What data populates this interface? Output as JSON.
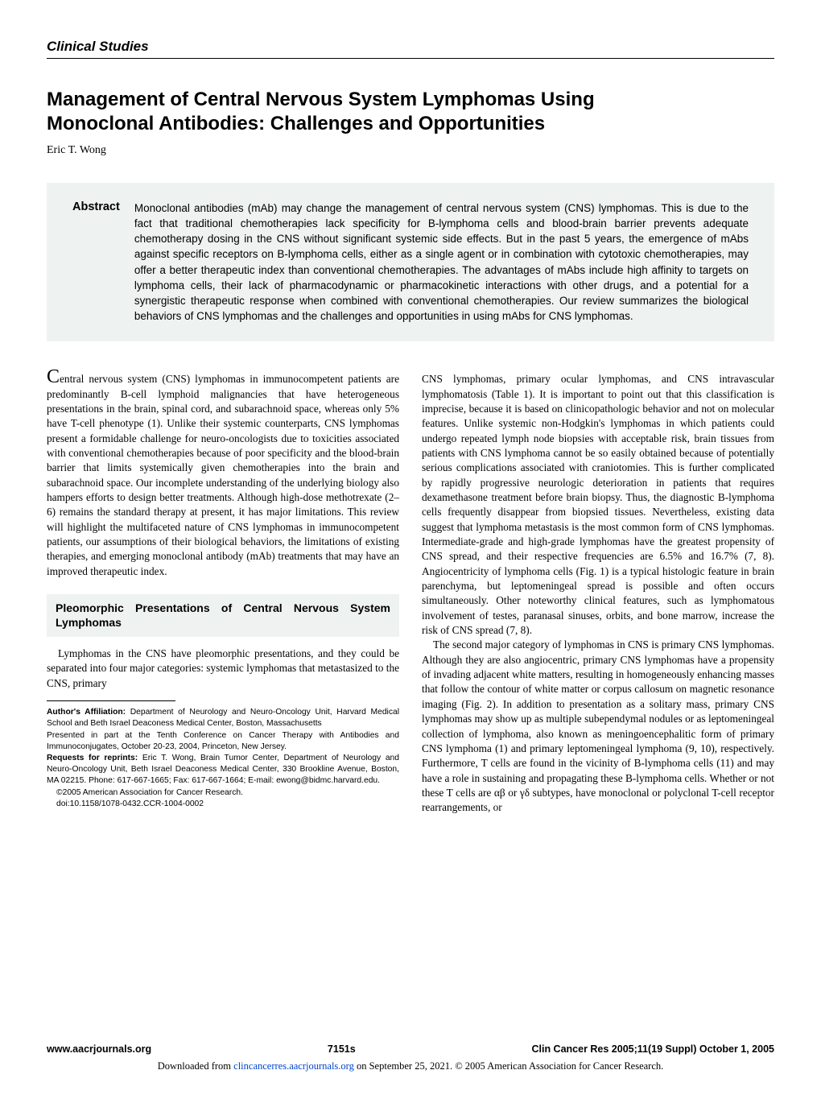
{
  "section_label": "Clinical Studies",
  "title_line1": "Management of Central Nervous System Lymphomas Using",
  "title_line2": "Monoclonal Antibodies: Challenges and Opportunities",
  "author": "Eric T. Wong",
  "abstract": {
    "label": "Abstract",
    "text": "Monoclonal antibodies (mAb) may change the management of central nervous system (CNS) lymphomas. This is due to the fact that traditional chemotherapies lack specificity for B-lymphoma cells and blood-brain barrier prevents adequate chemotherapy dosing in the CNS without significant systemic side effects. But in the past 5 years, the emergence of mAbs against specific receptors on B-lymphoma cells, either as a single agent or in combination with cytotoxic chemotherapies, may offer a better therapeutic index than conventional chemotherapies. The advantages of mAbs include high affinity to targets on lymphoma cells, their lack of pharmacodynamic or pharmacokinetic interactions with other drugs, and a potential for a synergistic therapeutic response when combined with conventional chemotherapies. Our review summarizes the biological behaviors of CNS lymphomas and the challenges and opportunities in using mAbs for CNS lymphomas."
  },
  "left_col": {
    "intro_first_letter": "C",
    "intro_rest": "entral nervous system (CNS) lymphomas in immunocompetent patients are predominantly B-cell lymphoid malignancies that have heterogeneous presentations in the brain, spinal cord, and subarachnoid space, whereas only 5% have T-cell phenotype (1). Unlike their systemic counterparts, CNS lymphomas present a formidable challenge for neuro-oncologists due to toxicities associated with conventional chemotherapies because of poor specificity and the blood-brain barrier that limits systemically given chemotherapies into the brain and subarachnoid space. Our incomplete understanding of the underlying biology also hampers efforts to design better treatments. Although high-dose methotrexate (2–6) remains the standard therapy at present, it has major limitations. This review will highlight the multifaceted nature of CNS lymphomas in immunocompetent patients, our assumptions of their biological behaviors, the limitations of existing therapies, and emerging monoclonal antibody (mAb) treatments that may have an improved therapeutic index.",
    "section_heading": "Pleomorphic Presentations of Central Nervous System Lymphomas",
    "section_para": "Lymphomas in the CNS have pleomorphic presentations, and they could be separated into four major categories: systemic lymphomas that metastasized to the CNS, primary",
    "affiliation_label": "Author's Affiliation:",
    "affiliation_text": " Department of Neurology and Neuro-Oncology Unit, Harvard Medical School and Beth Israel Deaconess Medical Center, Boston, Massachusetts",
    "presented": "Presented in part at the Tenth Conference on Cancer Therapy with Antibodies and Immunoconjugates, October 20-23, 2004, Princeton, New Jersey.",
    "reprints_label": "Requests for reprints:",
    "reprints_text": " Eric T. Wong, Brain Tumor Center, Department of Neurology and Neuro-Oncology Unit, Beth Israel Deaconess Medical Center, 330 Brookline Avenue, Boston, MA 02215. Phone: 617-667-1665; Fax: 617-667-1664; E-mail: ewong@bidmc.harvard.edu.",
    "copyright": "©2005 American Association for Cancer Research.",
    "doi": "doi:10.1158/1078-0432.CCR-1004-0002"
  },
  "right_col": {
    "para1": "CNS lymphomas, primary ocular lymphomas, and CNS intravascular lymphomatosis (Table 1). It is important to point out that this classification is imprecise, because it is based on clinicopathologic behavior and not on molecular features. Unlike systemic non-Hodgkin's lymphomas in which patients could undergo repeated lymph node biopsies with acceptable risk, brain tissues from patients with CNS lymphoma cannot be so easily obtained because of potentially serious complications associated with craniotomies. This is further complicated by rapidly progressive neurologic deterioration in patients that requires dexamethasone treatment before brain biopsy. Thus, the diagnostic B-lymphoma cells frequently disappear from biopsied tissues. Nevertheless, existing data suggest that lymphoma metastasis is the most common form of CNS lymphomas. Intermediate-grade and high-grade lymphomas have the greatest propensity of CNS spread, and their respective frequencies are 6.5% and 16.7% (7, 8). Angiocentricity of lymphoma cells (Fig. 1) is a typical histologic feature in brain parenchyma, but leptomeningeal spread is possible and often occurs simultaneously. Other noteworthy clinical features, such as lymphomatous involvement of testes, paranasal sinuses, orbits, and bone marrow, increase the risk of CNS spread (7, 8).",
    "para2": "The second major category of lymphomas in CNS is primary CNS lymphomas. Although they are also angiocentric, primary CNS lymphomas have a propensity of invading adjacent white matters, resulting in homogeneously enhancing masses that follow the contour of white matter or corpus callosum on magnetic resonance imaging (Fig. 2). In addition to presentation as a solitary mass, primary CNS lymphomas may show up as multiple subependymal nodules or as leptomeningeal collection of lymphoma, also known as meningoencephalitic form of primary CNS lymphoma (1) and primary leptomeningeal lymphoma (9, 10), respectively. Furthermore, T cells are found in the vicinity of B-lymphoma cells (11) and may have a role in sustaining and propagating these B-lymphoma cells. Whether or not these T cells are αβ or γδ subtypes, have monoclonal or polyclonal T-cell receptor rearrangements, or"
  },
  "footer": {
    "left": "www.aacrjournals.org",
    "center": "7151s",
    "right": "Clin Cancer Res 2005;11(19 Suppl) October 1, 2005",
    "download_pre": "Downloaded from ",
    "download_link": "clincancerres.aacrjournals.org",
    "download_post": " on September 25, 2021. © 2005 American Association for Cancer Research."
  },
  "colors": {
    "abstract_bg": "#eef2f1",
    "text": "#000000",
    "link": "#0044cc"
  }
}
